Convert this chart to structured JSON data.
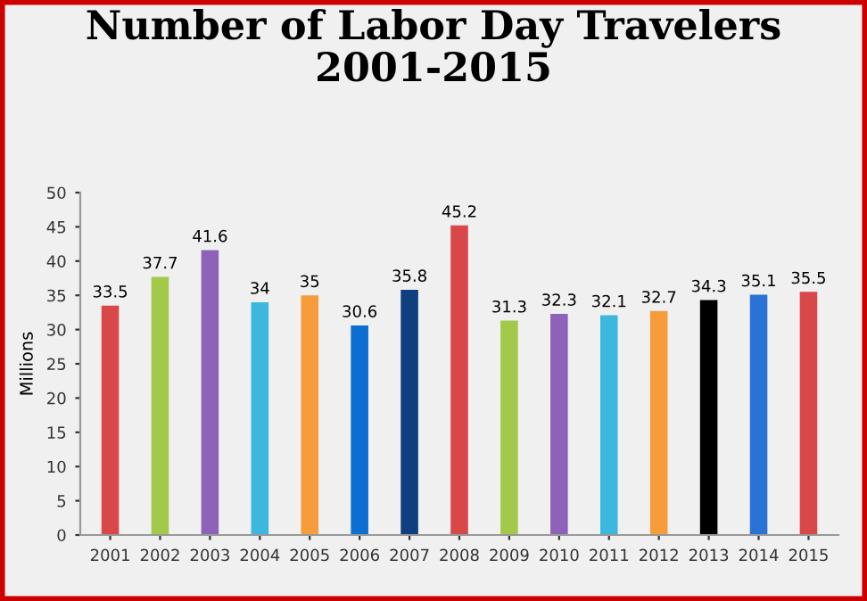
{
  "chart_data": {
    "type": "bar",
    "title": "Number of Labor Day Travelers\n2001-2015",
    "ylabel": "Millions",
    "categories": [
      "2001",
      "2002",
      "2003",
      "2004",
      "2005",
      "2006",
      "2007",
      "2008",
      "2009",
      "2010",
      "2011",
      "2012",
      "2013",
      "2014",
      "2015"
    ],
    "values": [
      33.5,
      37.7,
      41.6,
      34,
      35,
      30.6,
      35.8,
      45.2,
      31.3,
      32.3,
      32.1,
      32.7,
      34.3,
      35.1,
      35.5
    ],
    "colors": [
      "#d94848",
      "#a3c94a",
      "#8e62b8",
      "#3cb8de",
      "#f79c3a",
      "#0b6fd1",
      "#103f7f",
      "#d94848",
      "#a3c94a",
      "#8e62b8",
      "#3cb8de",
      "#f79c3a",
      "#000000",
      "#2a72d6",
      "#d94848"
    ],
    "ylim": [
      0,
      50
    ],
    "yticks": [
      0,
      5,
      10,
      15,
      20,
      25,
      30,
      35,
      40,
      45,
      50
    ],
    "data_labels": true,
    "grid": false
  }
}
